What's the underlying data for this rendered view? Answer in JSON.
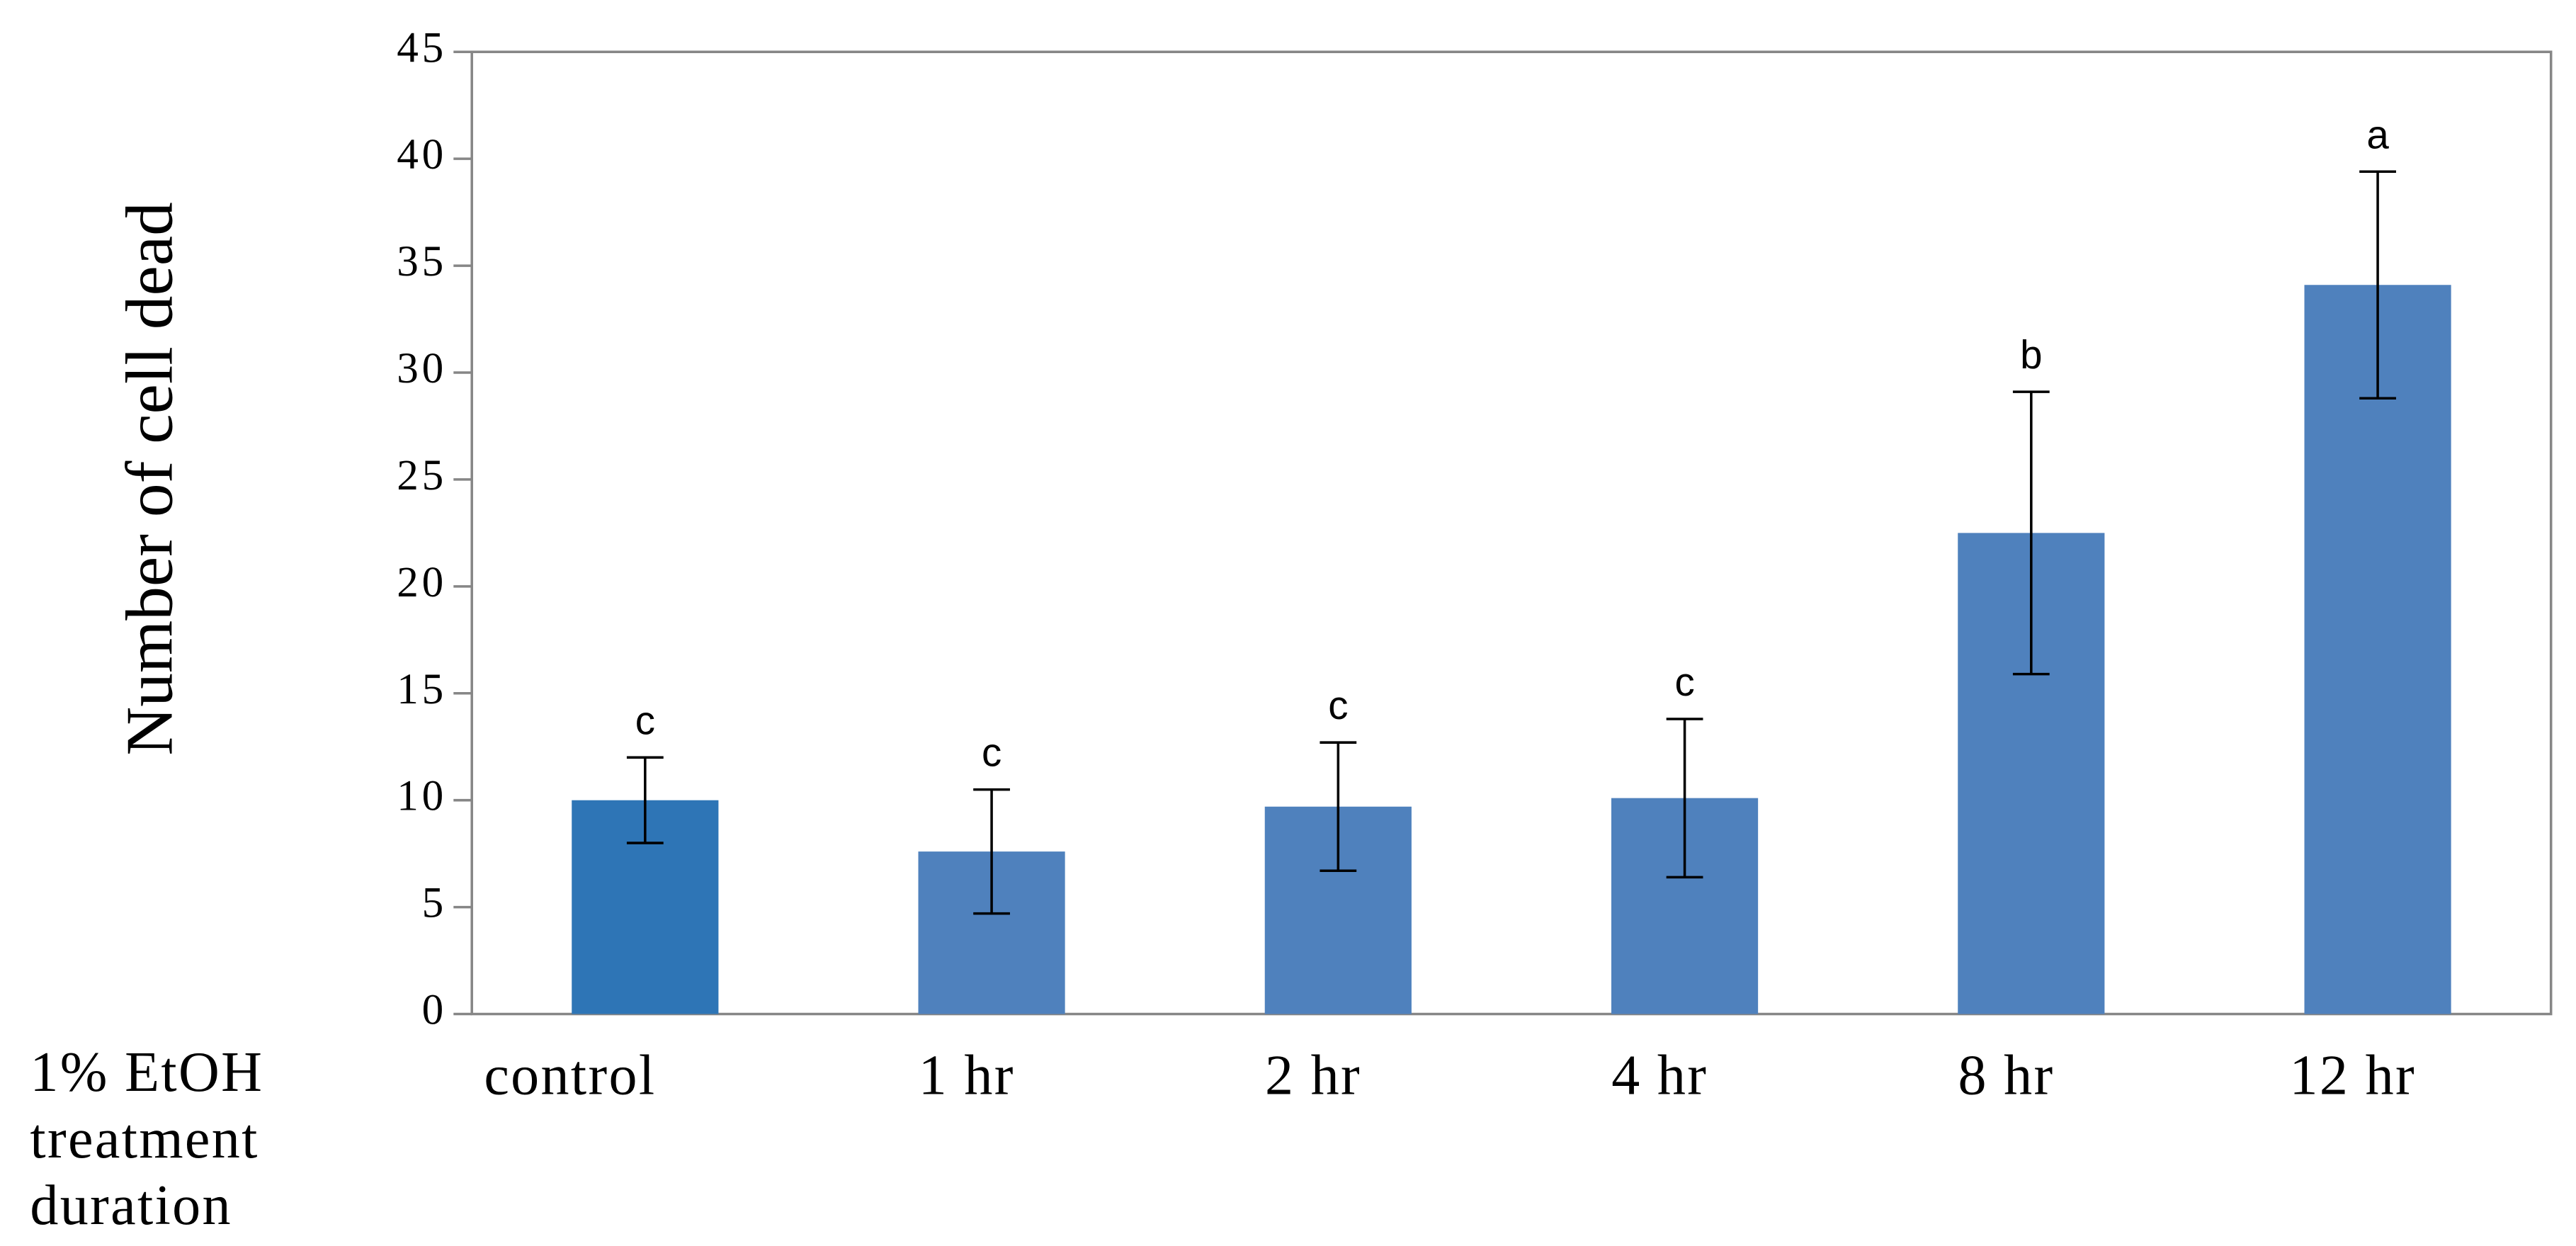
{
  "chart_data": {
    "type": "bar",
    "ylabel": "Number of cell dead",
    "xlabel": "1% EtOH treatment duration",
    "categories": [
      "control",
      "1 hr",
      "2 hr",
      "4 hr",
      "8 hr",
      "12 hr"
    ],
    "series": [
      {
        "values": [
          10,
          7.6,
          9.7,
          10.1,
          22.5,
          34.1
        ],
        "errors": [
          2,
          2.9,
          3.0,
          3.7,
          6.6,
          5.3
        ],
        "colors": [
          "#2e75b6",
          "#4f81bd",
          "#4f81bd",
          "#4f81bd",
          "#4f81bd",
          "#4f81bd"
        ],
        "annotations": [
          "c",
          "c",
          "c",
          "c",
          "b",
          "a"
        ]
      }
    ],
    "ylim": [
      0,
      45
    ],
    "yticks": [
      0,
      5,
      10,
      15,
      20,
      25,
      30,
      35,
      40,
      45
    ],
    "grid": false
  }
}
